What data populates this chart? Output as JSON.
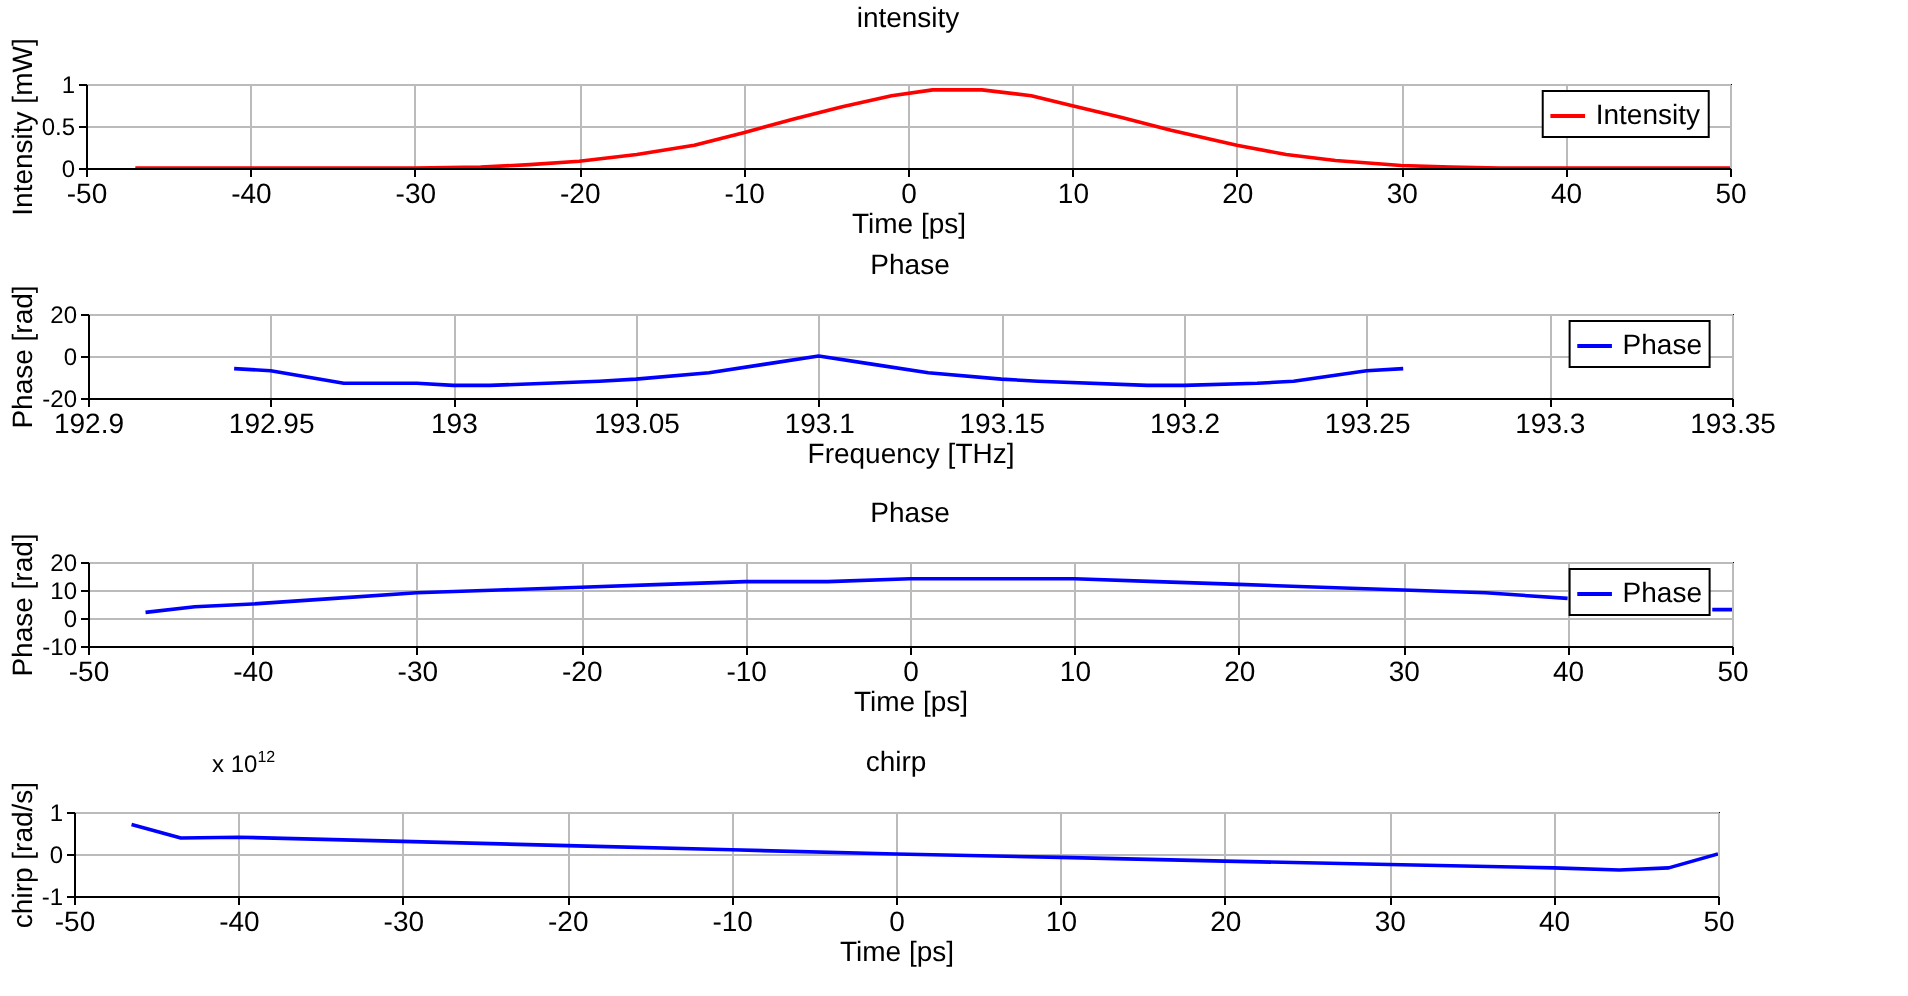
{
  "chart_data": [
    {
      "type": "line",
      "title": "intensity",
      "xlabel": "Time [ps]",
      "ylabel": "Intensity [mW]",
      "xlim": [
        -50,
        50
      ],
      "xticks": [
        -50,
        -40,
        -30,
        -20,
        -10,
        0,
        10,
        20,
        30,
        40,
        50
      ],
      "ylim": [
        0,
        1
      ],
      "yticks": [
        0,
        0.5,
        1
      ],
      "grid": true,
      "legend": "top right",
      "x": [
        -47,
        -40,
        -30,
        -26,
        -23,
        -20,
        -16.5,
        -13,
        -10,
        -7,
        -4,
        -1,
        1.5,
        4.5,
        7.5,
        10,
        13,
        16,
        20,
        23,
        26,
        30,
        33,
        36,
        40,
        45,
        50
      ],
      "series": [
        {
          "name": "Intensity",
          "color": "#ff0000",
          "values": [
            0,
            0,
            0,
            0.01,
            0.04,
            0.08,
            0.16,
            0.27,
            0.42,
            0.58,
            0.73,
            0.86,
            0.93,
            0.93,
            0.86,
            0.74,
            0.6,
            0.45,
            0.27,
            0.16,
            0.09,
            0.03,
            0.01,
            0,
            0,
            0,
            0
          ]
        }
      ]
    },
    {
      "type": "line",
      "title": "Phase",
      "xlabel": "Frequency [THz]",
      "ylabel": "Phase [rad]",
      "xlim": [
        192.9,
        193.35
      ],
      "xticks": [
        192.9,
        192.95,
        193,
        193.05,
        193.1,
        193.15,
        193.2,
        193.25,
        193.3,
        193.35
      ],
      "ylim": [
        -20,
        20
      ],
      "yticks": [
        -20,
        0,
        20
      ],
      "grid": true,
      "legend": "top right",
      "x": [
        192.94,
        192.95,
        192.97,
        192.98,
        192.99,
        193,
        193.01,
        193.04,
        193.05,
        193.07,
        193.085,
        193.1,
        193.115,
        193.13,
        193.15,
        193.16,
        193.19,
        193.2,
        193.22,
        193.23,
        193.25,
        193.26
      ],
      "series": [
        {
          "name": "Phase",
          "color": "#0000ff",
          "values": [
            -6,
            -7,
            -13,
            -13,
            -13,
            -14,
            -14,
            -12,
            -11,
            -8,
            -4,
            0,
            -4,
            -8,
            -11,
            -12,
            -14,
            -14,
            -13,
            -12,
            -7,
            -6
          ]
        }
      ]
    },
    {
      "type": "line",
      "title": "Phase",
      "xlabel": "Time [ps]",
      "ylabel": "Phase [rad]",
      "xlim": [
        -50,
        50
      ],
      "xticks": [
        -50,
        -40,
        -30,
        -20,
        -10,
        0,
        10,
        20,
        30,
        40,
        50
      ],
      "ylim": [
        -10,
        20
      ],
      "yticks": [
        -10,
        0,
        10,
        20
      ],
      "grid": true,
      "legend": "top right",
      "x": [
        -46.5,
        -43.5,
        -40,
        -35,
        -30,
        -25,
        -20,
        -15,
        -10,
        -5,
        0,
        5,
        10,
        15,
        20,
        25,
        30,
        35,
        40,
        43,
        48.8,
        50
      ],
      "series": [
        {
          "name": "Phase",
          "color": "#0000ff",
          "values": [
            2,
            4,
            5,
            7,
            9,
            10,
            11,
            12,
            13,
            13,
            14,
            14,
            14,
            13,
            12,
            11,
            10,
            9,
            7,
            null,
            3,
            3
          ]
        }
      ]
    },
    {
      "type": "line",
      "title": "chirp",
      "xlabel": "Time [ps]",
      "ylabel": "chirp [rad/s]",
      "xlim": [
        -50,
        50
      ],
      "xticks": [
        -50,
        -40,
        -30,
        -20,
        -10,
        0,
        10,
        20,
        30,
        40,
        50
      ],
      "ylim": [
        -1,
        1
      ],
      "yticks": [
        -1,
        0,
        1
      ],
      "grid": true,
      "annotations": [
        "x 10$^{12}$"
      ],
      "x": [
        -46.5,
        -43.5,
        -40,
        -30,
        -20,
        -10,
        0,
        10,
        20,
        30,
        40,
        44,
        47,
        50
      ],
      "series": [
        {
          "color": "#0000ff",
          "values": [
            0.7,
            0.38,
            0.4,
            0.3,
            0.2,
            0.1,
            0,
            -0.08,
            -0.17,
            -0.25,
            -0.33,
            -0.38,
            -0.33,
            0
          ]
        }
      ]
    }
  ]
}
